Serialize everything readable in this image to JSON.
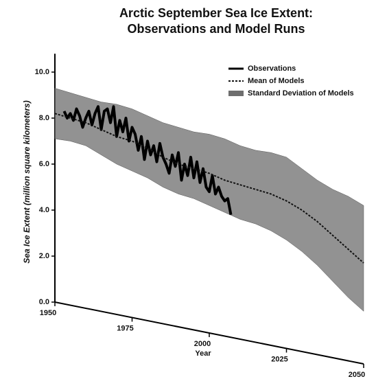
{
  "chart_data": {
    "type": "line",
    "title": "Arctic September Sea Ice Extent:",
    "subtitle": "Observations and Model Runs",
    "y_label": "Sea Ice Extent (million square kilometers)",
    "x_label": "Year",
    "xlim": [
      1950,
      2050
    ],
    "xticks": [
      1950,
      1975,
      2000,
      2025,
      2050
    ],
    "ylim": [
      0,
      10.8
    ],
    "yticks": [
      {
        "value": 0,
        "label": "0.0"
      },
      {
        "value": 2,
        "label": "2.0"
      },
      {
        "value": 4,
        "label": "4.0"
      },
      {
        "value": 6,
        "label": "6.0"
      },
      {
        "value": 8,
        "label": "8.0"
      },
      {
        "value": 10,
        "label": "10.0"
      }
    ],
    "legend": "top-right",
    "bands": [
      {
        "name": "Standard Deviation of Models",
        "color": "#6e6e6e",
        "x": [
          1950,
          1955,
          1960,
          1965,
          1970,
          1975,
          1980,
          1985,
          1990,
          1995,
          2000,
          2005,
          2010,
          2015,
          2020,
          2025,
          2030,
          2035,
          2040,
          2045,
          2050
        ],
        "upper": [
          9.3,
          9.1,
          8.9,
          8.7,
          8.6,
          8.4,
          8.1,
          7.8,
          7.6,
          7.4,
          7.3,
          7.1,
          6.8,
          6.6,
          6.5,
          6.3,
          5.8,
          5.3,
          4.9,
          4.6,
          4.2
        ],
        "lower": [
          7.1,
          7.0,
          6.8,
          6.4,
          6.0,
          5.7,
          5.4,
          5.0,
          4.7,
          4.5,
          4.2,
          3.9,
          3.6,
          3.4,
          3.1,
          2.7,
          2.2,
          1.6,
          0.9,
          0.2,
          -0.4
        ]
      }
    ],
    "series": [
      {
        "name": "Observations",
        "color": "#000000",
        "style": "solid",
        "x": [
          1953,
          1954,
          1955,
          1956,
          1957,
          1958,
          1959,
          1960,
          1961,
          1962,
          1963,
          1964,
          1965,
          1966,
          1967,
          1968,
          1969,
          1970,
          1971,
          1972,
          1973,
          1974,
          1975,
          1976,
          1977,
          1978,
          1979,
          1980,
          1981,
          1982,
          1983,
          1984,
          1985,
          1986,
          1987,
          1988,
          1989,
          1990,
          1991,
          1992,
          1993,
          1994,
          1995,
          1996,
          1997,
          1998,
          1999,
          2000,
          2001,
          2002,
          2003,
          2004,
          2005,
          2006,
          2007
        ],
        "values": [
          8.3,
          8.0,
          8.2,
          7.9,
          8.4,
          8.1,
          7.6,
          8.0,
          8.3,
          7.7,
          8.2,
          8.5,
          7.5,
          8.3,
          8.4,
          7.8,
          8.5,
          7.2,
          7.9,
          7.4,
          8.0,
          7.0,
          7.6,
          7.3,
          6.6,
          7.2,
          6.2,
          7.0,
          6.4,
          6.8,
          6.1,
          6.9,
          6.3,
          6.0,
          5.6,
          6.4,
          5.9,
          6.5,
          5.3,
          6.0,
          5.5,
          6.3,
          5.4,
          6.1,
          5.2,
          5.8,
          5.0,
          4.8,
          5.5,
          4.7,
          5.0,
          4.6,
          4.4,
          4.5,
          3.8
        ]
      },
      {
        "name": "Mean of Models",
        "color": "#111111",
        "style": "dotted",
        "x": [
          1950,
          1955,
          1960,
          1965,
          1970,
          1975,
          1980,
          1985,
          1990,
          1995,
          2000,
          2005,
          2010,
          2015,
          2020,
          2025,
          2030,
          2035,
          2040,
          2045,
          2050
        ],
        "values": [
          8.2,
          8.0,
          7.8,
          7.5,
          7.2,
          7.0,
          6.7,
          6.3,
          6.0,
          5.8,
          5.6,
          5.3,
          5.1,
          4.9,
          4.7,
          4.4,
          4.0,
          3.5,
          2.9,
          2.3,
          1.7
        ]
      }
    ]
  }
}
